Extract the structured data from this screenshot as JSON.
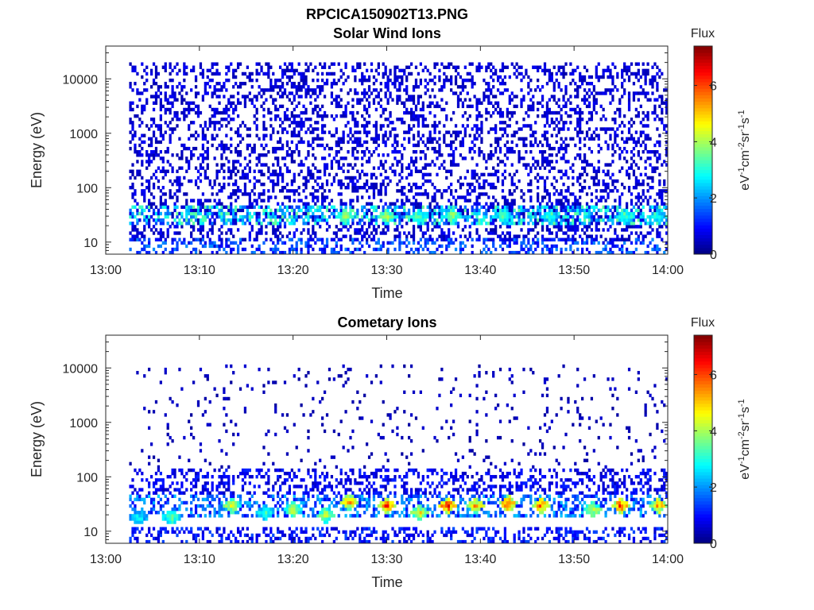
{
  "figure": {
    "title": "RPCICA150902T13.PNG"
  },
  "colorbar": {
    "label": "Flux",
    "unit_text": "eV",
    "range": [
      0,
      7.4
    ],
    "ticks": [
      "0",
      "2",
      "4",
      "6"
    ],
    "tick_values": [
      0,
      2,
      4,
      6
    ],
    "colormap": "jet"
  },
  "chart_data": [
    {
      "type": "heatmap",
      "title": "Solar Wind Ions",
      "xlabel": "Time",
      "ylabel": "Energy (eV)",
      "x_ticks": [
        "13:00",
        "13:10",
        "13:20",
        "13:30",
        "13:40",
        "13:50",
        "14:00"
      ],
      "x_range_minutes": [
        0,
        60
      ],
      "y_scale": "log",
      "y_range": [
        6,
        40000
      ],
      "y_ticks": [
        "10",
        "100",
        "1000",
        "10000"
      ],
      "y_tick_values": [
        10,
        100,
        1000,
        10000
      ],
      "flux_range": [
        0,
        7.4
      ],
      "description": "scattered low flux (~0-1) across 10-20000 eV after 13:02; moderate flux (~2-4) near 20-40 eV with brightest spots near 13:30 and 13:37",
      "bands": [
        {
          "emin": 10,
          "emax": 20000,
          "tmin": 2.5,
          "tmax": 60,
          "flux": 0.6,
          "density": 0.32
        },
        {
          "emin": 20,
          "emax": 45,
          "tmin": 2.5,
          "tmax": 60,
          "flux": 2.4,
          "density": 0.45
        },
        {
          "emin": 6,
          "emax": 12,
          "tmin": 2.5,
          "tmax": 60,
          "flux": 1.3,
          "density": 0.35
        }
      ],
      "hotspots": [
        {
          "t": 25.5,
          "e": 30,
          "flux": 4.2
        },
        {
          "t": 30.0,
          "e": 30,
          "flux": 4.5
        },
        {
          "t": 33.5,
          "e": 30,
          "flux": 3.8
        },
        {
          "t": 37.0,
          "e": 30,
          "flux": 4.3
        },
        {
          "t": 42.5,
          "e": 30,
          "flux": 3.6
        },
        {
          "t": 47.5,
          "e": 30,
          "flux": 3.5
        },
        {
          "t": 55.5,
          "e": 30,
          "flux": 3.8
        },
        {
          "t": 59.0,
          "e": 30,
          "flux": 3.2
        }
      ]
    },
    {
      "type": "heatmap",
      "title": "Cometary Ions",
      "xlabel": "Time",
      "ylabel": "Energy (eV)",
      "x_ticks": [
        "13:00",
        "13:10",
        "13:20",
        "13:30",
        "13:40",
        "13:50",
        "14:00"
      ],
      "x_range_minutes": [
        0,
        60
      ],
      "y_scale": "log",
      "y_range": [
        6,
        40000
      ],
      "y_ticks": [
        "10",
        "100",
        "1000",
        "10000"
      ],
      "y_tick_values": [
        10,
        100,
        1000,
        10000
      ],
      "flux_range": [
        0,
        7.4
      ],
      "description": "sparse low flux above 100 eV; periodic bursts of high flux (~5-7) at 20-40 eV",
      "bands": [
        {
          "emin": 150,
          "emax": 12000,
          "tmin": 2.5,
          "tmax": 60,
          "flux": 0.4,
          "density": 0.05
        },
        {
          "emin": 50,
          "emax": 150,
          "tmin": 2.5,
          "tmax": 60,
          "flux": 0.8,
          "density": 0.35
        },
        {
          "emin": 18,
          "emax": 50,
          "tmin": 2.5,
          "tmax": 60,
          "flux": 1.6,
          "density": 0.4
        },
        {
          "emin": 6,
          "emax": 12,
          "tmin": 2.5,
          "tmax": 60,
          "flux": 1.0,
          "density": 0.35
        }
      ],
      "hotspots": [
        {
          "t": 3.5,
          "e": 18,
          "flux": 3.2
        },
        {
          "t": 7.0,
          "e": 18,
          "flux": 4.0
        },
        {
          "t": 13.5,
          "e": 30,
          "flux": 4.8
        },
        {
          "t": 17.0,
          "e": 22,
          "flux": 3.5
        },
        {
          "t": 20.0,
          "e": 25,
          "flux": 4.5
        },
        {
          "t": 23.5,
          "e": 20,
          "flux": 4.6
        },
        {
          "t": 26.0,
          "e": 35,
          "flux": 5.8
        },
        {
          "t": 30.0,
          "e": 30,
          "flux": 6.6
        },
        {
          "t": 33.5,
          "e": 22,
          "flux": 5.0
        },
        {
          "t": 36.5,
          "e": 30,
          "flux": 6.8
        },
        {
          "t": 39.5,
          "e": 30,
          "flux": 5.6
        },
        {
          "t": 43.0,
          "e": 32,
          "flux": 6.4
        },
        {
          "t": 46.5,
          "e": 30,
          "flux": 6.2
        },
        {
          "t": 52.0,
          "e": 25,
          "flux": 4.8
        },
        {
          "t": 55.0,
          "e": 30,
          "flux": 6.5
        },
        {
          "t": 59.0,
          "e": 30,
          "flux": 6.0
        }
      ]
    }
  ]
}
